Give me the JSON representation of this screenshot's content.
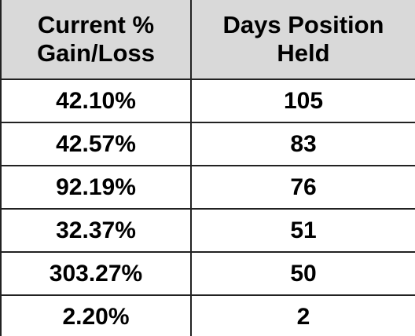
{
  "table": {
    "header": [
      [
        "Current %",
        "Gain/Loss"
      ],
      [
        "Days Position",
        "Held"
      ]
    ],
    "rows": [
      [
        "42.10%",
        "105"
      ],
      [
        "42.57%",
        "83"
      ],
      [
        "92.19%",
        "76"
      ],
      [
        "32.37%",
        "51"
      ],
      [
        "303.27%",
        "50"
      ],
      [
        "2.20%",
        "2"
      ]
    ]
  }
}
